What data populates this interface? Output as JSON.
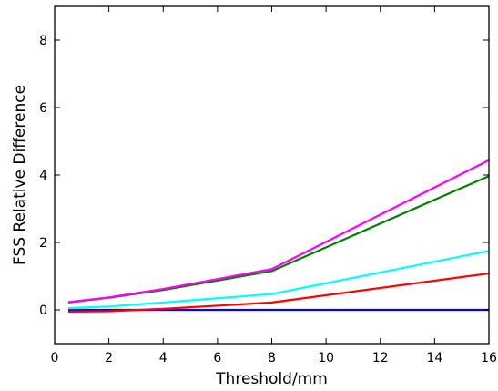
{
  "chart_data": {
    "type": "line",
    "title": "",
    "xlabel": "Threshold/mm",
    "ylabel": "FSS Relative Difference",
    "xlim": [
      0,
      16
    ],
    "ylim": [
      -1,
      9
    ],
    "xticks": [
      0,
      2,
      4,
      6,
      8,
      10,
      12,
      14,
      16
    ],
    "yticks": [
      0,
      2,
      4,
      6,
      8
    ],
    "grid": false,
    "legend": "none",
    "series": [
      {
        "color": "#0000ff",
        "x": [
          0.5,
          2,
          4,
          8,
          16
        ],
        "y": [
          0.0,
          0.0,
          0.0,
          0.0,
          0.0
        ]
      },
      {
        "color": "#ff0000",
        "x": [
          0.5,
          2,
          4,
          8,
          16
        ],
        "y": [
          -0.05,
          -0.04,
          0.03,
          0.22,
          1.08
        ]
      },
      {
        "color": "#00ffff",
        "x": [
          0.5,
          2,
          4,
          8,
          16
        ],
        "y": [
          0.05,
          0.1,
          0.22,
          0.47,
          1.75
        ]
      },
      {
        "color": "#008000",
        "x": [
          0.5,
          2,
          4,
          8,
          16
        ],
        "y": [
          0.22,
          0.36,
          0.59,
          1.15,
          3.97
        ]
      },
      {
        "color": "#ff00ff",
        "x": [
          0.5,
          2,
          4,
          8,
          16
        ],
        "y": [
          0.23,
          0.37,
          0.62,
          1.21,
          4.44
        ]
      }
    ]
  }
}
